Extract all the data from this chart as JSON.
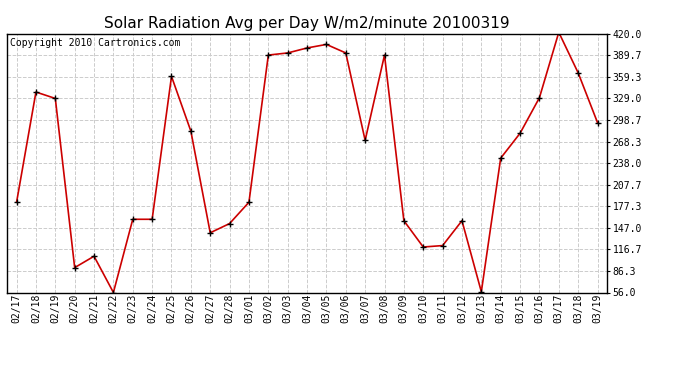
{
  "title": "Solar Radiation Avg per Day W/m2/minute 20100319",
  "copyright_text": "Copyright 2010 Cartronics.com",
  "dates": [
    "02/17",
    "02/18",
    "02/19",
    "02/20",
    "02/21",
    "02/22",
    "02/23",
    "02/24",
    "02/25",
    "02/26",
    "02/27",
    "02/28",
    "03/01",
    "03/02",
    "03/03",
    "03/04",
    "03/05",
    "03/06",
    "03/07",
    "03/08",
    "03/09",
    "03/10",
    "03/11",
    "03/12",
    "03/13",
    "03/14",
    "03/15",
    "03/16",
    "03/17",
    "03/18",
    "03/19"
  ],
  "values": [
    183,
    338,
    329,
    91,
    107,
    56,
    159,
    159,
    360,
    283,
    140,
    153,
    183,
    390,
    393,
    400,
    405,
    393,
    270,
    390,
    157,
    120,
    122,
    157,
    57,
    245,
    280,
    330,
    422,
    365,
    295
  ],
  "y_ticks": [
    56.0,
    86.3,
    116.7,
    147.0,
    177.3,
    207.7,
    238.0,
    268.3,
    298.7,
    329.0,
    359.3,
    389.7,
    420.0
  ],
  "ylim": [
    56.0,
    420.0
  ],
  "line_color": "#cc0000",
  "marker": "+",
  "marker_size": 5,
  "marker_color": "#000000",
  "bg_color": "#ffffff",
  "plot_bg_color": "#ffffff",
  "grid_color": "#cccccc",
  "grid_style": "--",
  "title_fontsize": 11,
  "copyright_fontsize": 7,
  "tick_fontsize": 7
}
